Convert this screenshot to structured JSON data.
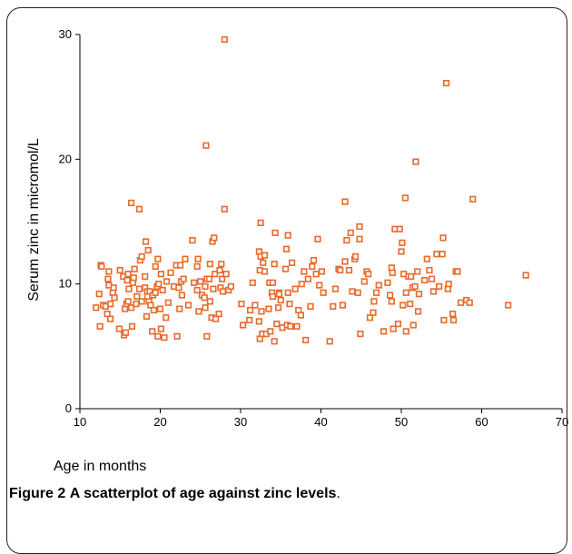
{
  "caption": {
    "figure_label": "Figure 2",
    "text": "A scatterplot of age against zinc levels",
    "suffix": "."
  },
  "chart_data": {
    "type": "scatter",
    "title": "",
    "xlabel": "Age in months",
    "ylabel": "Serum zinc in micromol/L",
    "xlim": [
      10,
      70
    ],
    "ylim": [
      0,
      30
    ],
    "x_ticks": [
      "10",
      "20",
      "30",
      "40",
      "50",
      "60",
      "70"
    ],
    "y_ticks": [
      "0",
      "10",
      "20",
      "30"
    ],
    "grid": false,
    "legend": "none",
    "marker": "open-square",
    "color": "#e8692a",
    "points": [
      [
        12.0,
        8.1
      ],
      [
        12.4,
        9.2
      ],
      [
        12.5,
        6.6
      ],
      [
        12.6,
        11.5
      ],
      [
        12.7,
        11.4
      ],
      [
        12.9,
        8.3
      ],
      [
        13.2,
        8.2
      ],
      [
        13.4,
        7.6
      ],
      [
        13.5,
        10.4
      ],
      [
        13.6,
        9.9
      ],
      [
        13.6,
        11.0
      ],
      [
        13.8,
        7.2
      ],
      [
        13.8,
        8.4
      ],
      [
        14.1,
        9.3
      ],
      [
        14.2,
        9.7
      ],
      [
        14.3,
        8.9
      ],
      [
        14.9,
        6.4
      ],
      [
        15.0,
        11.1
      ],
      [
        15.4,
        10.6
      ],
      [
        15.5,
        5.9
      ],
      [
        15.6,
        8.0
      ],
      [
        15.7,
        6.1
      ],
      [
        15.8,
        8.4
      ],
      [
        15.9,
        10.3
      ],
      [
        16.0,
        10.8
      ],
      [
        16.0,
        8.6
      ],
      [
        16.1,
        9.6
      ],
      [
        16.4,
        8.1
      ],
      [
        16.4,
        16.5
      ],
      [
        16.5,
        6.6
      ],
      [
        16.6,
        10.1
      ],
      [
        16.7,
        10.5
      ],
      [
        16.8,
        11.2
      ],
      [
        17.0,
        8.4
      ],
      [
        17.1,
        9.0
      ],
      [
        17.4,
        16.0
      ],
      [
        17.4,
        9.6
      ],
      [
        17.5,
        11.9
      ],
      [
        17.7,
        12.2
      ],
      [
        17.7,
        8.6
      ],
      [
        18.1,
        10.6
      ],
      [
        18.1,
        9.7
      ],
      [
        18.2,
        13.4
      ],
      [
        18.3,
        7.4
      ],
      [
        18.4,
        9.4
      ],
      [
        18.4,
        9.0
      ],
      [
        18.5,
        12.7
      ],
      [
        18.6,
        8.6
      ],
      [
        18.7,
        9.4
      ],
      [
        18.8,
        8.3
      ],
      [
        19.0,
        6.2
      ],
      [
        19.1,
        9.1
      ],
      [
        19.2,
        7.9
      ],
      [
        19.4,
        11.4
      ],
      [
        19.4,
        9.3
      ],
      [
        19.6,
        9.8
      ],
      [
        19.7,
        5.8
      ],
      [
        19.7,
        12.0
      ],
      [
        19.8,
        10.0
      ],
      [
        20.0,
        8.0
      ],
      [
        20.1,
        10.8
      ],
      [
        20.1,
        6.4
      ],
      [
        20.3,
        9.5
      ],
      [
        20.5,
        5.7
      ],
      [
        20.7,
        7.3
      ],
      [
        20.8,
        10.2
      ],
      [
        21.0,
        8.5
      ],
      [
        21.3,
        10.9
      ],
      [
        21.7,
        9.8
      ],
      [
        22.0,
        11.5
      ],
      [
        22.1,
        5.8
      ],
      [
        22.3,
        9.7
      ],
      [
        22.4,
        8.0
      ],
      [
        22.5,
        11.5
      ],
      [
        22.6,
        10.2
      ],
      [
        22.7,
        9.1
      ],
      [
        22.9,
        10.4
      ],
      [
        23.1,
        12.0
      ],
      [
        23.5,
        8.3
      ],
      [
        24.0,
        13.5
      ],
      [
        24.2,
        10.1
      ],
      [
        24.6,
        9.5
      ],
      [
        24.6,
        11.4
      ],
      [
        24.7,
        12.0
      ],
      [
        24.8,
        7.8
      ],
      [
        25.0,
        10.2
      ],
      [
        25.2,
        9.1
      ],
      [
        25.5,
        8.9
      ],
      [
        25.6,
        8.1
      ],
      [
        25.6,
        9.8
      ],
      [
        25.7,
        21.1
      ],
      [
        25.8,
        10.4
      ],
      [
        25.8,
        5.8
      ],
      [
        26.1,
        10.4
      ],
      [
        26.2,
        8.6
      ],
      [
        26.2,
        11.6
      ],
      [
        26.4,
        7.3
      ],
      [
        26.5,
        13.4
      ],
      [
        26.6,
        9.6
      ],
      [
        26.7,
        13.7
      ],
      [
        26.8,
        10.8
      ],
      [
        26.9,
        7.2
      ],
      [
        27.3,
        7.6
      ],
      [
        27.4,
        11.1
      ],
      [
        27.5,
        9.7
      ],
      [
        27.6,
        11.6
      ],
      [
        27.7,
        10.4
      ],
      [
        27.8,
        9.4
      ],
      [
        28.0,
        29.6
      ],
      [
        28.0,
        16.0
      ],
      [
        28.2,
        10.8
      ],
      [
        28.5,
        9.5
      ],
      [
        28.8,
        9.8
      ],
      [
        30.1,
        8.4
      ],
      [
        30.3,
        6.7
      ],
      [
        31.1,
        7.1
      ],
      [
        31.2,
        7.9
      ],
      [
        31.5,
        10.1
      ],
      [
        31.8,
        8.3
      ],
      [
        32.3,
        7.0
      ],
      [
        32.3,
        12.6
      ],
      [
        32.4,
        11.1
      ],
      [
        32.4,
        5.6
      ],
      [
        32.5,
        14.9
      ],
      [
        32.5,
        12.2
      ],
      [
        32.6,
        7.8
      ],
      [
        32.7,
        6.0
      ],
      [
        32.8,
        11.7
      ],
      [
        33.0,
        12.3
      ],
      [
        33.0,
        11.0
      ],
      [
        33.2,
        6.0
      ],
      [
        33.5,
        8.0
      ],
      [
        33.6,
        10.1
      ],
      [
        33.7,
        6.2
      ],
      [
        33.9,
        9.3
      ],
      [
        34.0,
        10.1
      ],
      [
        34.0,
        9.0
      ],
      [
        34.2,
        5.4
      ],
      [
        34.2,
        11.6
      ],
      [
        34.3,
        14.1
      ],
      [
        34.5,
        6.8
      ],
      [
        34.7,
        8.1
      ],
      [
        34.8,
        9.3
      ],
      [
        34.8,
        9.2
      ],
      [
        35.0,
        8.7
      ],
      [
        35.2,
        6.5
      ],
      [
        35.6,
        11.2
      ],
      [
        35.7,
        12.8
      ],
      [
        35.8,
        6.7
      ],
      [
        35.9,
        13.9
      ],
      [
        35.9,
        9.3
      ],
      [
        36.1,
        8.4
      ],
      [
        36.2,
        6.6
      ],
      [
        36.4,
        11.7
      ],
      [
        36.8,
        9.6
      ],
      [
        37.0,
        6.6
      ],
      [
        37.2,
        7.9
      ],
      [
        37.5,
        7.5
      ],
      [
        37.6,
        10.0
      ],
      [
        37.9,
        11.0
      ],
      [
        38.1,
        5.5
      ],
      [
        38.4,
        10.4
      ],
      [
        38.7,
        8.2
      ],
      [
        38.9,
        11.4
      ],
      [
        39.1,
        11.9
      ],
      [
        39.4,
        10.8
      ],
      [
        39.6,
        13.6
      ],
      [
        39.8,
        9.9
      ],
      [
        40.1,
        11.0
      ],
      [
        40.3,
        9.3
      ],
      [
        41.1,
        5.4
      ],
      [
        41.5,
        8.2
      ],
      [
        41.8,
        9.6
      ],
      [
        42.2,
        11.2
      ],
      [
        42.4,
        11.1
      ],
      [
        42.7,
        8.3
      ],
      [
        43.0,
        16.6
      ],
      [
        43.0,
        11.8
      ],
      [
        43.2,
        13.5
      ],
      [
        43.5,
        11.1
      ],
      [
        43.7,
        14.1
      ],
      [
        43.9,
        9.4
      ],
      [
        44.2,
        12.0
      ],
      [
        44.3,
        12.2
      ],
      [
        44.6,
        9.3
      ],
      [
        44.8,
        14.6
      ],
      [
        44.8,
        13.6
      ],
      [
        44.9,
        6.0
      ],
      [
        45.4,
        10.2
      ],
      [
        45.7,
        11.0
      ],
      [
        45.9,
        10.8
      ],
      [
        46.1,
        7.3
      ],
      [
        46.5,
        7.7
      ],
      [
        46.6,
        8.6
      ],
      [
        46.9,
        9.3
      ],
      [
        47.2,
        9.9
      ],
      [
        47.8,
        6.2
      ],
      [
        48.3,
        10.1
      ],
      [
        48.6,
        9.1
      ],
      [
        48.8,
        8.6
      ],
      [
        48.8,
        11.3
      ],
      [
        48.9,
        10.9
      ],
      [
        49.0,
        6.4
      ],
      [
        49.2,
        14.4
      ],
      [
        49.6,
        6.8
      ],
      [
        49.8,
        14.4
      ],
      [
        50.0,
        12.6
      ],
      [
        50.1,
        13.3
      ],
      [
        50.2,
        8.3
      ],
      [
        50.3,
        10.8
      ],
      [
        50.5,
        16.9
      ],
      [
        50.6,
        6.2
      ],
      [
        50.6,
        9.3
      ],
      [
        50.9,
        10.6
      ],
      [
        51.1,
        8.4
      ],
      [
        51.2,
        10.6
      ],
      [
        51.4,
        9.7
      ],
      [
        51.5,
        6.7
      ],
      [
        51.7,
        9.8
      ],
      [
        51.8,
        19.8
      ],
      [
        52.0,
        11.0
      ],
      [
        52.1,
        7.8
      ],
      [
        52.2,
        9.2
      ],
      [
        52.9,
        10.3
      ],
      [
        53.2,
        12.0
      ],
      [
        53.5,
        11.1
      ],
      [
        53.8,
        10.4
      ],
      [
        54.0,
        9.4
      ],
      [
        54.4,
        12.4
      ],
      [
        54.7,
        9.8
      ],
      [
        55.1,
        12.4
      ],
      [
        55.2,
        13.7
      ],
      [
        55.3,
        7.1
      ],
      [
        55.6,
        26.1
      ],
      [
        55.8,
        9.6
      ],
      [
        55.9,
        10.0
      ],
      [
        56.4,
        7.6
      ],
      [
        56.5,
        7.1
      ],
      [
        56.8,
        11.0
      ],
      [
        57.0,
        11.0
      ],
      [
        57.4,
        8.5
      ],
      [
        58.1,
        8.7
      ],
      [
        58.5,
        8.5
      ],
      [
        58.9,
        16.8
      ],
      [
        63.3,
        8.3
      ],
      [
        65.5,
        10.7
      ]
    ]
  }
}
